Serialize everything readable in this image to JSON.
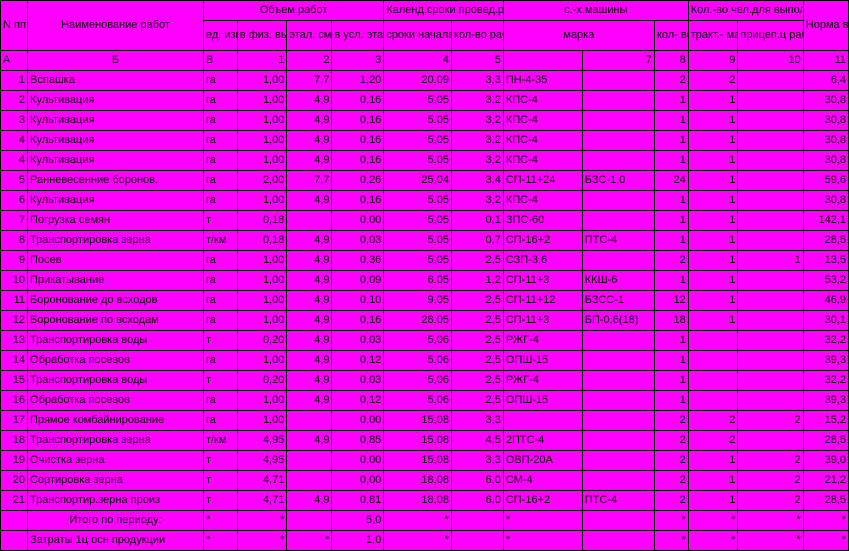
{
  "header": {
    "npp": "N пп",
    "name": "Наименование работ",
    "volume_group": "Объем работ",
    "ed_izm": "ед. изм",
    "fiz": "в физ. выраж",
    "etal": "этал. смен. выра- ботка",
    "usl": "в усл. эталон. га",
    "calendar_group": "Календ.сроки провед.работ",
    "sroki": "сроки начала работ",
    "dnei": "кол-во рабоч. дней",
    "machines_group": "с.-х.машины",
    "marka": "марка",
    "marka2": "",
    "kolvo": "кол- во",
    "chel_group": "Кол.-во чел.для выполн.нормы",
    "trakt": "тракт.- машин.",
    "pricep": "прицеп.ц рабоч.на ручн. раб.",
    "norma": "Норма выра- ботки"
  },
  "letters": [
    "А",
    "Б",
    "В",
    "1",
    "2",
    "3",
    "4",
    "5",
    "",
    "7",
    "8",
    "9",
    "10",
    "11"
  ],
  "rows": [
    {
      "n": "1",
      "name": "Вспашка",
      "ed": "га",
      "fiz": "1,00",
      "et": "7,7",
      "usl": "1,20",
      "sr": "20,09",
      "dn": "3,3",
      "m1": "ПН-4-35",
      "m2": "",
      "kv": "2",
      "tr": "2",
      "pr": "",
      "nr": "6,4"
    },
    {
      "n": "2",
      "name": "Культивация",
      "ed": "га",
      "fiz": "1,00",
      "et": "4,9",
      "usl": "0,16",
      "sr": "5,05",
      "dn": "3,2",
      "m1": "КПС-4",
      "m2": "",
      "kv": "1",
      "tr": "1",
      "pr": "",
      "nr": "30,8"
    },
    {
      "n": "3",
      "name": "Культивация",
      "ed": "га",
      "fiz": "1,00",
      "et": "4,9",
      "usl": "0,16",
      "sr": "5,05",
      "dn": "3,2",
      "m1": "КПС-4",
      "m2": "",
      "kv": "1",
      "tr": "1",
      "pr": "",
      "nr": "30,8"
    },
    {
      "n": "4",
      "name": "Культивация",
      "ed": "га",
      "fiz": "1,00",
      "et": "4,9",
      "usl": "0,16",
      "sr": "5,05",
      "dn": "3,2",
      "m1": "КПС-4",
      "m2": "",
      "kv": "1",
      "tr": "1",
      "pr": "",
      "nr": "30,8"
    },
    {
      "n": "4",
      "name": "Культивация",
      "ed": "га",
      "fiz": "1,00",
      "et": "4,9",
      "usl": "0,16",
      "sr": "5,05",
      "dn": "3,2",
      "m1": "КПС-4",
      "m2": "",
      "kv": "1",
      "tr": "1",
      "pr": "",
      "nr": "30,8"
    },
    {
      "n": "5",
      "name": "Ранневесенние боронов.",
      "ed": "га",
      "fiz": "2,00",
      "et": "7,7",
      "usl": "0,26",
      "sr": "25,04",
      "dn": "3,4",
      "m1": "СП-11+24",
      "m2": "БЗС-1,0",
      "kv": "24",
      "tr": "1",
      "pr": "",
      "nr": "59,6"
    },
    {
      "n": "6",
      "name": "Культивация",
      "ed": "га",
      "fiz": "1,00",
      "et": "4,9",
      "usl": "0,16",
      "sr": "5,05",
      "dn": "3,2",
      "m1": "КПС-4",
      "m2": "",
      "kv": "1",
      "tr": "1",
      "pr": "",
      "nr": "30,8"
    },
    {
      "n": "7",
      "name": "Погрузка семян",
      "ed": "т",
      "fiz": "0,18",
      "et": "",
      "usl": "0,00",
      "sr": "5,05",
      "dn": "0,1",
      "m1": "ЗПС-60",
      "m2": "",
      "kv": "1",
      "tr": "1",
      "pr": "",
      "nr": "142,1"
    },
    {
      "n": "8",
      "name": "Транспортировка зерна",
      "ed": "т/км",
      "fiz": "0,18",
      "et": "4,9",
      "usl": "0,03",
      "sr": "5,05",
      "dn": "0,7",
      "m1": "СП-16+2",
      "m2": "ПТС-4",
      "kv": "1",
      "tr": "1",
      "pr": "",
      "nr": "28,5"
    },
    {
      "n": "9",
      "name": "Посев",
      "ed": "га",
      "fiz": "1,00",
      "et": "4,9",
      "usl": "0,36",
      "sr": "5,05",
      "dn": "2,5",
      "m1": "СЗП-3,6",
      "m2": "",
      "kv": "2",
      "tr": "1",
      "pr": "1",
      "nr": "13,5"
    },
    {
      "n": "10",
      "name": "Прикатывание",
      "ed": "га",
      "fiz": "1,00",
      "et": "4,9",
      "usl": "0,09",
      "sr": "6,05",
      "dn": "1,2",
      "m1": "СП-11+3",
      "m2": "ККШ-6",
      "kv": "1",
      "tr": "1",
      "pr": "",
      "nr": "53,2"
    },
    {
      "n": "11",
      "name": "Боронование до всходов",
      "ed": "га",
      "fiz": "1,00",
      "et": "4,9",
      "usl": "0,10",
      "sr": "9,05",
      "dn": "2,5",
      "m1": "СП-11+12",
      "m2": "БЗСС-1",
      "kv": "12",
      "tr": "1",
      "pr": "",
      "nr": "46,9"
    },
    {
      "n": "12",
      "name": "Боронование по всходам",
      "ed": "га",
      "fiz": "1,00",
      "et": "4,9",
      "usl": "0,16",
      "sr": "28,05",
      "dn": "2,5",
      "m1": "СП-11+3",
      "m2": "БП-0,6(18)",
      "kv": "18",
      "tr": "1",
      "pr": "",
      "nr": "30,1"
    },
    {
      "n": "13",
      "name": "Транспортировка воды",
      "ed": "т",
      "fiz": "0,20",
      "et": "4,9",
      "usl": "0,03",
      "sr": "5,06",
      "dn": "2,5",
      "m1": "РЖГ-4",
      "m2": "",
      "kv": "1",
      "tr": "",
      "pr": "",
      "nr": "32,2"
    },
    {
      "n": "14",
      "name": "Обработка посевов",
      "ed": "га",
      "fiz": "1,00",
      "et": "4,9",
      "usl": "0,12",
      "sr": "5,06",
      "dn": "2,5",
      "m1": "ОПШ-15",
      "m2": "",
      "kv": "1",
      "tr": "",
      "pr": "",
      "nr": "39,3"
    },
    {
      "n": "15",
      "name": "Транспортировка воды",
      "ed": "т",
      "fiz": "0,20",
      "et": "4,9",
      "usl": "0,03",
      "sr": "5,06",
      "dn": "2,5",
      "m1": "РЖГ-4",
      "m2": "",
      "kv": "1",
      "tr": "",
      "pr": "",
      "nr": "32,2"
    },
    {
      "n": "16",
      "name": "Обработка посевов",
      "ed": "га",
      "fiz": "1,00",
      "et": "4,9",
      "usl": "0,12",
      "sr": "5,06",
      "dn": "2,5",
      "m1": "ОПШ-15",
      "m2": "",
      "kv": "1",
      "tr": "",
      "pr": "",
      "nr": "39,3"
    },
    {
      "n": "17",
      "name": "Прямое комбайнирование",
      "ed": "га",
      "fiz": "1,00",
      "et": "",
      "usl": "0,00",
      "sr": "15,08",
      "dn": "3,3",
      "m1": "",
      "m2": "",
      "kv": "2",
      "tr": "2",
      "pr": "2",
      "nr": "15,2"
    },
    {
      "n": "18",
      "name": "Транспортировка зерна",
      "ed": "т/км",
      "fiz": "4,95",
      "et": "4,9",
      "usl": "0,85",
      "sr": "15,08",
      "dn": "4,5",
      "m1": "2ПТС-4",
      "m2": "",
      "kv": "2",
      "tr": "2",
      "pr": "",
      "nr": "28,5"
    },
    {
      "n": "19",
      "name": "Очистка зерна",
      "ed": "т",
      "fiz": "4,95",
      "et": "",
      "usl": "0,00",
      "sr": "15,08",
      "dn": "3,3",
      "m1": "ОВП-20А",
      "m2": "",
      "kv": "2",
      "tr": "1",
      "pr": "2",
      "nr": "39,0"
    },
    {
      "n": "20",
      "name": "Сортировка зерна",
      "ed": "т",
      "fiz": "4,71",
      "et": "",
      "usl": "0,00",
      "sr": "18,08",
      "dn": "6,0",
      "m1": "СМ-4",
      "m2": "",
      "kv": "2",
      "tr": "1",
      "pr": "2",
      "nr": "21,2"
    },
    {
      "n": "21",
      "name": "Транспортир.зерна произ",
      "ed": "т",
      "fiz": "4,71",
      "et": "4,9",
      "usl": "0,81",
      "sr": "18,08",
      "dn": "6,0",
      "m1": "СП-16+2",
      "m2": "ПТС-4",
      "kv": "2",
      "tr": "1",
      "pr": "2",
      "nr": "28,5"
    }
  ],
  "footer1": {
    "n": "",
    "name": "Итого по периоду:",
    "ed": "*",
    "fiz": "*",
    "et": "",
    "usl": "5,0",
    "sr": "*",
    "dn": "",
    "m1": "*",
    "m2": "",
    "kv": "*",
    "tr": "*",
    "pr": "*",
    "nr": "*"
  },
  "footer2": {
    "n": "",
    "name": "Затраты 1ц осн продукции",
    "ed": "*",
    "fiz": "*",
    "et": "*",
    "usl": "1,0",
    "sr": "*",
    "dn": "",
    "m1": "*",
    "m2": "",
    "kv": "*",
    "tr": "*",
    "pr": "*",
    "nr": "*"
  }
}
